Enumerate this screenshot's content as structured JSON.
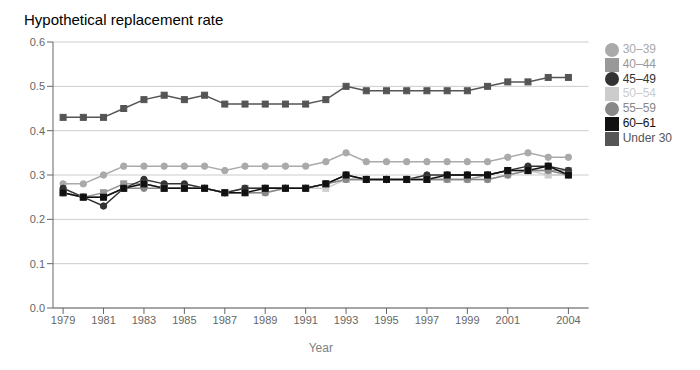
{
  "chart_data": {
    "type": "line",
    "title": "Hypothetical replacement rate",
    "xlabel": "Year",
    "x": [
      1979,
      1980,
      1981,
      1982,
      1983,
      1984,
      1985,
      1986,
      1987,
      1988,
      1989,
      1990,
      1991,
      1992,
      1993,
      1994,
      1995,
      1996,
      1997,
      1998,
      1999,
      2000,
      2001,
      2002,
      2003,
      2004
    ],
    "series": [
      {
        "name": "Under 30",
        "color": "#555555",
        "marker": "square",
        "values": [
          0.43,
          0.43,
          0.43,
          0.45,
          0.47,
          0.48,
          0.47,
          0.48,
          0.46,
          0.46,
          0.46,
          0.46,
          0.46,
          0.47,
          0.5,
          0.49,
          0.49,
          0.49,
          0.49,
          0.49,
          0.49,
          0.5,
          0.51,
          0.51,
          0.52,
          0.52
        ]
      },
      {
        "name": "30–39",
        "color": "#aaaaaa",
        "marker": "circle",
        "values": [
          0.28,
          0.28,
          0.3,
          0.32,
          0.32,
          0.32,
          0.32,
          0.32,
          0.31,
          0.32,
          0.32,
          0.32,
          0.32,
          0.33,
          0.35,
          0.33,
          0.33,
          0.33,
          0.33,
          0.33,
          0.33,
          0.33,
          0.34,
          0.35,
          0.34,
          0.34
        ]
      },
      {
        "name": "40–44",
        "color": "#999999",
        "marker": "square",
        "values": [
          0.26,
          0.25,
          0.26,
          0.28,
          0.28,
          0.27,
          0.27,
          0.27,
          0.26,
          0.27,
          0.27,
          0.27,
          0.27,
          0.28,
          0.29,
          0.29,
          0.29,
          0.29,
          0.29,
          0.29,
          0.29,
          0.3,
          0.31,
          0.31,
          0.31,
          0.31
        ]
      },
      {
        "name": "45–49",
        "color": "#333333",
        "marker": "circle",
        "values": [
          0.27,
          0.25,
          0.23,
          0.27,
          0.29,
          0.28,
          0.28,
          0.27,
          0.26,
          0.27,
          0.27,
          0.27,
          0.27,
          0.28,
          0.3,
          0.29,
          0.29,
          0.29,
          0.3,
          0.3,
          0.3,
          0.3,
          0.31,
          0.32,
          0.32,
          0.31
        ]
      },
      {
        "name": "50–54",
        "color": "#cccccc",
        "marker": "square",
        "values": [
          0.26,
          0.25,
          0.25,
          0.27,
          0.28,
          0.27,
          0.27,
          0.27,
          0.26,
          0.26,
          0.26,
          0.27,
          0.27,
          0.27,
          0.29,
          0.29,
          0.29,
          0.29,
          0.29,
          0.29,
          0.29,
          0.29,
          0.3,
          0.31,
          0.3,
          0.3
        ]
      },
      {
        "name": "55–59",
        "color": "#888888",
        "marker": "circle",
        "values": [
          0.26,
          0.25,
          0.25,
          0.27,
          0.27,
          0.27,
          0.27,
          0.27,
          0.26,
          0.26,
          0.26,
          0.27,
          0.27,
          0.28,
          0.29,
          0.29,
          0.29,
          0.29,
          0.29,
          0.29,
          0.29,
          0.29,
          0.3,
          0.31,
          0.31,
          0.3
        ]
      },
      {
        "name": "60–61",
        "color": "#111111",
        "marker": "square",
        "values": [
          0.26,
          0.25,
          0.25,
          0.27,
          0.28,
          0.27,
          0.27,
          0.27,
          0.26,
          0.26,
          0.27,
          0.27,
          0.27,
          0.28,
          0.3,
          0.29,
          0.29,
          0.29,
          0.29,
          0.3,
          0.3,
          0.3,
          0.31,
          0.31,
          0.32,
          0.3
        ]
      }
    ],
    "xlim": [
      1978.5,
      2005.0
    ],
    "xticks": [
      1979,
      1981,
      1983,
      1985,
      1987,
      1989,
      1991,
      1993,
      1995,
      1997,
      1999,
      2001,
      2004
    ],
    "ylim": [
      0.0,
      0.6
    ],
    "yticks": [
      {
        "value": 0.0,
        "label": "0.0"
      },
      0.1,
      0.2,
      0.3,
      0.4,
      0.5,
      0.6
    ],
    "grid": true,
    "legend": "right"
  }
}
